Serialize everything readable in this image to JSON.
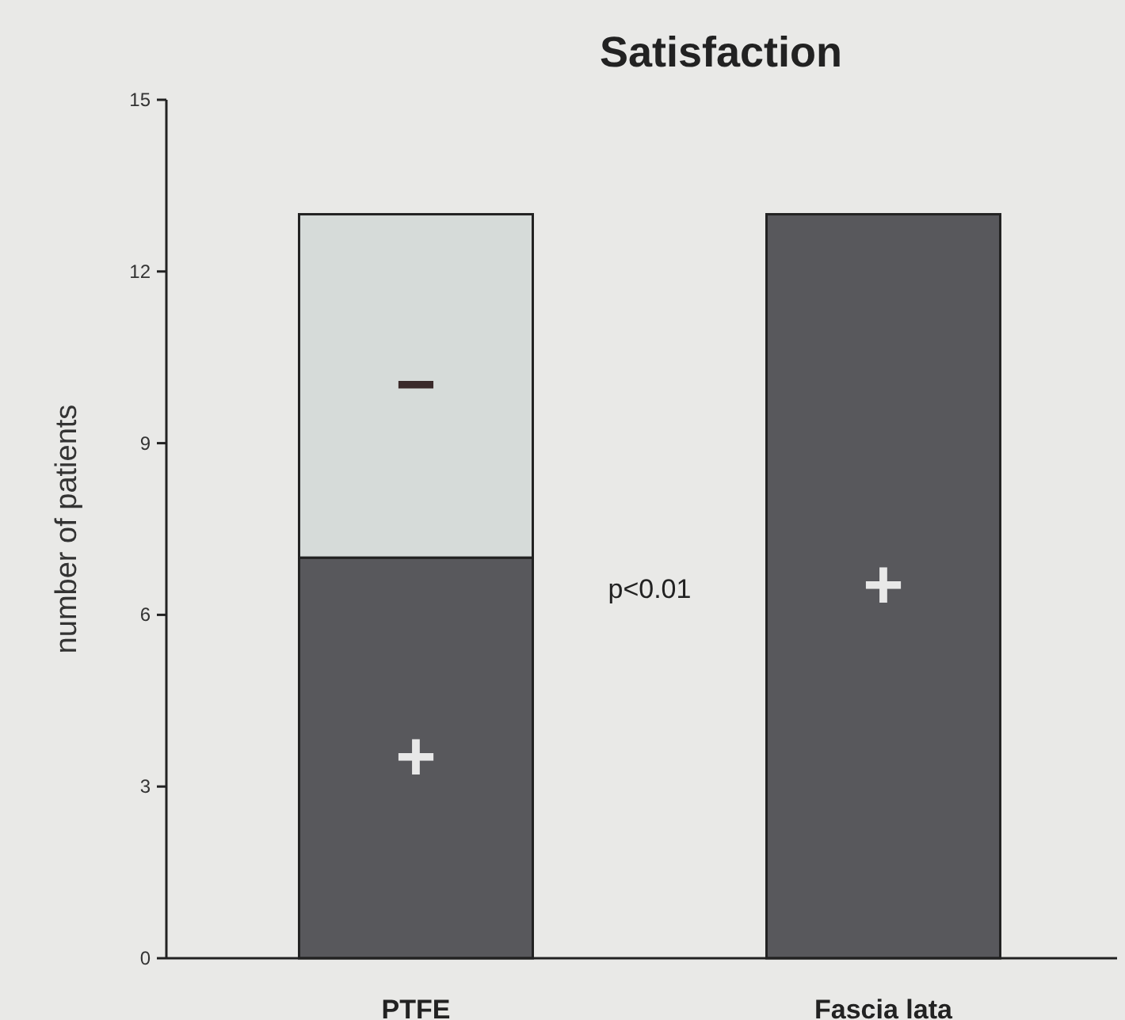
{
  "chart_data": {
    "type": "bar",
    "title": "Satisfaction",
    "ylabel": "number of patients",
    "categories": [
      "PTFE",
      "Fascia lata"
    ],
    "stacked": true,
    "series": [
      {
        "name": "+",
        "color": "#58585c",
        "values": [
          7,
          13
        ]
      },
      {
        "name": "−",
        "color": "#d6dbd9",
        "values": [
          6,
          0
        ]
      }
    ],
    "ylim": [
      0,
      15
    ],
    "yticks": [
      0,
      3,
      6,
      9,
      12,
      15
    ],
    "annotations": [
      "p<0.01"
    ],
    "grid": false
  }
}
